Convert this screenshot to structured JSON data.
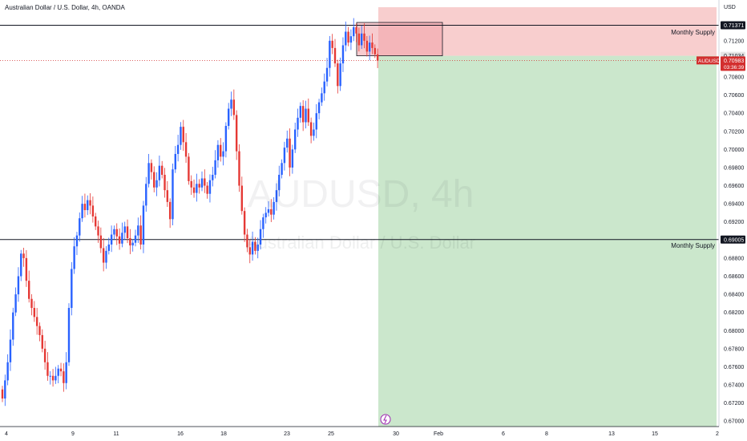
{
  "header": {
    "title": "Australian Dollar / U.S. Dollar, 4h, OANDA"
  },
  "watermark": {
    "symbol": "AUDUSD, 4h",
    "description": "Australian Dollar / U.S. Dollar"
  },
  "axis": {
    "currency": "USD"
  },
  "price_labels": {
    "upper_level": "0.71371",
    "entry_level": "0.71034",
    "symbol_tag": "AUDUSD",
    "current_price": "0.70983",
    "countdown": "03:36:39",
    "lower_level": "0.69005"
  },
  "annotations": {
    "upper_supply": "Monthly Supply",
    "lower_supply": "Monthly Supply"
  },
  "colors": {
    "bull": "#2962ff",
    "bear": "#e53935",
    "stop_zone": "#f7c6c6",
    "target_zone": "#c8e6c9",
    "supply_box": "#f0a0a8",
    "price_tag": "#d32f2f",
    "level_tag": "#131722"
  },
  "chart_data": {
    "type": "candlestick",
    "title": "Australian Dollar / U.S. Dollar, 4h, OANDA",
    "ylim": [
      0.6694,
      0.7165
    ],
    "y_ticks": [
      0.67,
      0.672,
      0.674,
      0.676,
      0.678,
      0.68,
      0.682,
      0.684,
      0.686,
      0.688,
      0.692,
      0.694,
      0.696,
      0.698,
      0.7,
      0.702,
      0.704,
      0.706,
      0.708,
      0.712
    ],
    "y_tick_labels": [
      "0.67000",
      "0.67200",
      "0.67400",
      "0.67600",
      "0.67800",
      "0.68000",
      "0.68200",
      "0.68400",
      "0.68600",
      "0.68800",
      "0.69200",
      "0.69400",
      "0.69600",
      "0.69800",
      "0.70000",
      "0.70200",
      "0.70400",
      "0.70600",
      "0.70800",
      "0.71200"
    ],
    "x_tick_labels": [
      "4",
      "9",
      "11",
      "16",
      "18",
      "23",
      "25",
      "30",
      "Feb",
      "6",
      "8",
      "13",
      "15",
      "2"
    ],
    "horizontal_levels": [
      0.71371,
      0.69005
    ],
    "current_price": 0.70983,
    "entry_price": 0.71034,
    "closes": [
      0.6725,
      0.6745,
      0.6765,
      0.679,
      0.682,
      0.684,
      0.686,
      0.6885,
      0.688,
      0.6855,
      0.6835,
      0.6825,
      0.6815,
      0.6805,
      0.6795,
      0.678,
      0.6765,
      0.675,
      0.675,
      0.6745,
      0.675,
      0.6758,
      0.6755,
      0.6742,
      0.6765,
      0.6825,
      0.6868,
      0.6893,
      0.6905,
      0.6924,
      0.694,
      0.6933,
      0.6944,
      0.6938,
      0.6926,
      0.6915,
      0.6905,
      0.6891,
      0.6875,
      0.6888,
      0.6895,
      0.6906,
      0.6912,
      0.6904,
      0.6896,
      0.6908,
      0.6915,
      0.6902,
      0.6894,
      0.6897,
      0.6905,
      0.6916,
      0.6895,
      0.6938,
      0.6962,
      0.6985,
      0.6975,
      0.6958,
      0.6966,
      0.6982,
      0.6972,
      0.6955,
      0.6942,
      0.6923,
      0.6978,
      0.6995,
      0.7005,
      0.7025,
      0.7008,
      0.6992,
      0.6965,
      0.6958,
      0.6952,
      0.6962,
      0.6958,
      0.6968,
      0.696,
      0.6951,
      0.6966,
      0.6972,
      0.6988,
      0.7005,
      0.6992,
      0.6998,
      0.7026,
      0.7045,
      0.7055,
      0.7038,
      0.6998,
      0.696,
      0.6932,
      0.6906,
      0.6892,
      0.6884,
      0.6898,
      0.6888,
      0.6895,
      0.6912,
      0.6925,
      0.693,
      0.6934,
      0.6928,
      0.6942,
      0.6955,
      0.6972,
      0.6985,
      0.7002,
      0.7012,
      0.698,
      0.7,
      0.7022,
      0.7035,
      0.7048,
      0.703,
      0.7045,
      0.703,
      0.7015,
      0.7022,
      0.704,
      0.7052,
      0.7062,
      0.7075,
      0.709,
      0.712,
      0.7112,
      0.7095,
      0.707,
      0.7095,
      0.7115,
      0.713,
      0.7118,
      0.7125,
      0.7135,
      0.7128,
      0.7115,
      0.7128,
      0.712,
      0.7108,
      0.7118,
      0.7112,
      0.7105,
      0.7098
    ]
  }
}
